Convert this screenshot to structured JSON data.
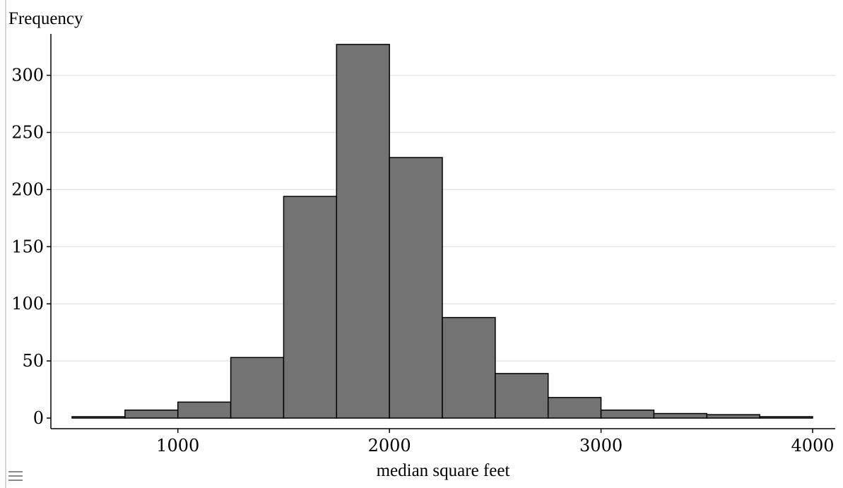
{
  "chart_data": {
    "type": "histogram",
    "ylabel": "Frequency",
    "xlabel": "median square feet",
    "xlim": [
      500,
      4100
    ],
    "ylim": [
      0,
      330
    ],
    "x_ticks": [
      1000,
      2000,
      3000,
      4000
    ],
    "y_ticks": [
      0,
      50,
      100,
      150,
      200,
      250,
      300
    ],
    "grid": "horizontal",
    "bin_width": 250,
    "bins": [
      {
        "start": 500,
        "end": 750,
        "count": 1
      },
      {
        "start": 750,
        "end": 1000,
        "count": 7
      },
      {
        "start": 1000,
        "end": 1250,
        "count": 14
      },
      {
        "start": 1250,
        "end": 1500,
        "count": 53
      },
      {
        "start": 1500,
        "end": 1750,
        "count": 194
      },
      {
        "start": 1750,
        "end": 2000,
        "count": 327
      },
      {
        "start": 2000,
        "end": 2250,
        "count": 228
      },
      {
        "start": 2250,
        "end": 2500,
        "count": 88
      },
      {
        "start": 2500,
        "end": 2750,
        "count": 39
      },
      {
        "start": 2750,
        "end": 3000,
        "count": 18
      },
      {
        "start": 3000,
        "end": 3250,
        "count": 7
      },
      {
        "start": 3250,
        "end": 3500,
        "count": 4
      },
      {
        "start": 3500,
        "end": 3750,
        "count": 3
      },
      {
        "start": 3750,
        "end": 4000,
        "count": 1
      }
    ],
    "colors": {
      "bar": "#737373",
      "bar_edge": "#000000",
      "grid": "#e6e6e6",
      "axis": "#000000"
    }
  },
  "menu_icon": "hamburger-menu-icon"
}
